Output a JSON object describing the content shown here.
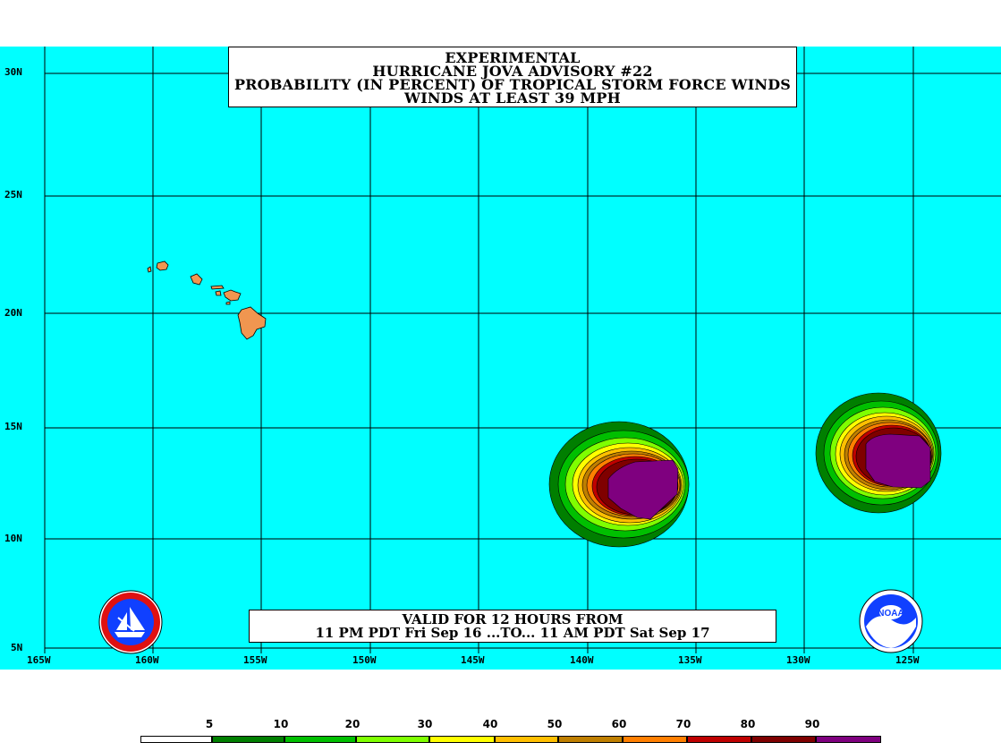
{
  "title": {
    "line1": "EXPERIMENTAL",
    "line2": "HURRICANE JOVA ADVISORY #22",
    "line3": "PROBABILITY (IN PERCENT) OF TROPICAL STORM FORCE WINDS",
    "line4": "WINDS AT LEAST 39 MPH"
  },
  "valid": {
    "line1": "VALID FOR 12 HOURS FROM",
    "line2": "11 PM PDT Fri Sep 16 ...TO... 11 AM PDT Sat Sep 17"
  },
  "axes": {
    "lat_labels": [
      "30N",
      "25N",
      "20N",
      "15N",
      "10N",
      "5N"
    ],
    "lon_labels": [
      "165W",
      "160W",
      "155W",
      "150W",
      "145W",
      "140W",
      "135W",
      "130W",
      "125W"
    ]
  },
  "legend": {
    "labels": [
      "5",
      "10",
      "20",
      "30",
      "40",
      "50",
      "60",
      "70",
      "80",
      "90"
    ],
    "colors": [
      "#ffffff",
      "#007f00",
      "#00bf00",
      "#7fff00",
      "#ffff00",
      "#ffbf00",
      "#bf7f00",
      "#ff7f00",
      "#bf0000",
      "#7f0000",
      "#7f007f"
    ]
  },
  "colors": {
    "ocean": "#00ffff",
    "land": "#f09650",
    "grid": "#000000"
  },
  "logos": {
    "left": "nws-logo",
    "right": "noaa-logo"
  }
}
